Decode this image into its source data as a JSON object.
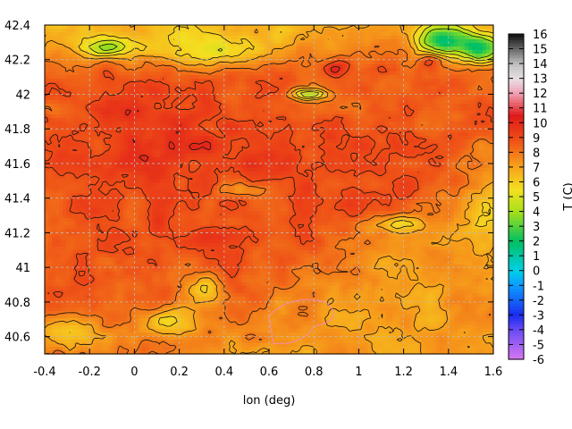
{
  "chart_data": {
    "type": "heatmap",
    "title": "",
    "xlabel": "lon (deg)",
    "ylabel": "",
    "colorbar_label": "T (C)",
    "xlim": [
      -0.4,
      1.6
    ],
    "ylim": [
      40.5,
      42.4
    ],
    "x_ticks": [
      "-0.4",
      "-0.2",
      "0",
      "0.2",
      "0.4",
      "0.6",
      "0.8",
      "1",
      "1.2",
      "1.4",
      "1.6"
    ],
    "y_ticks": [
      "40.6",
      "40.8",
      "41",
      "41.2",
      "41.4",
      "41.6",
      "41.8",
      "42",
      "42.2",
      "42.4"
    ],
    "colorbar_range": [
      -6,
      16
    ],
    "colorbar_ticks": [
      "-6",
      "-5",
      "-4",
      "-3",
      "-2",
      "-1",
      "0",
      "1",
      "2",
      "3",
      "4",
      "5",
      "6",
      "7",
      "8",
      "9",
      "10",
      "11",
      "12",
      "13",
      "14",
      "15",
      "16"
    ],
    "grid": true,
    "contour_lines": true,
    "colormap_stops": [
      {
        "t": -6,
        "color": "#d877f0"
      },
      {
        "t": -4,
        "color": "#6a4cf5"
      },
      {
        "t": -3,
        "color": "#1a2cf0"
      },
      {
        "t": -1,
        "color": "#0d9aff"
      },
      {
        "t": 0,
        "color": "#00d0e8"
      },
      {
        "t": 2,
        "color": "#00c060"
      },
      {
        "t": 4,
        "color": "#a6e01a"
      },
      {
        "t": 5.5,
        "color": "#f4e020"
      },
      {
        "t": 7,
        "color": "#f7a41b"
      },
      {
        "t": 9,
        "color": "#ee4a17"
      },
      {
        "t": 10.5,
        "color": "#e01a1a"
      },
      {
        "t": 12,
        "color": "#f0a0b4"
      },
      {
        "t": 13,
        "color": "#e8e0e4"
      },
      {
        "t": 14,
        "color": "#c0c0c0"
      },
      {
        "t": 16,
        "color": "#101010"
      }
    ],
    "temperature_field_approx": {
      "description_levels_C": "mostly 7-10 inland, 6-7 southeast coastal region, 3-5 at northern highlands",
      "features": [
        {
          "lon": 1.35,
          "lat": 42.28,
          "T": 2.5
        },
        {
          "lon": 1.52,
          "lat": 42.25,
          "T": 3.0
        },
        {
          "lon": -0.1,
          "lat": 42.27,
          "T": 4.0
        },
        {
          "lon": 0.78,
          "lat": 42.0,
          "T": 5.0
        },
        {
          "lon": 0.9,
          "lat": 42.15,
          "T": 10.5
        },
        {
          "lon": 1.1,
          "lat": 40.8,
          "T": 7.0
        },
        {
          "lon": 0.1,
          "lat": 41.8,
          "T": 9.5
        },
        {
          "lon": 0.4,
          "lat": 41.2,
          "T": 10.0
        },
        {
          "lon": -0.3,
          "lat": 40.7,
          "T": 6.0
        },
        {
          "lon": 0.2,
          "lat": 40.7,
          "T": 5.5
        }
      ]
    }
  }
}
